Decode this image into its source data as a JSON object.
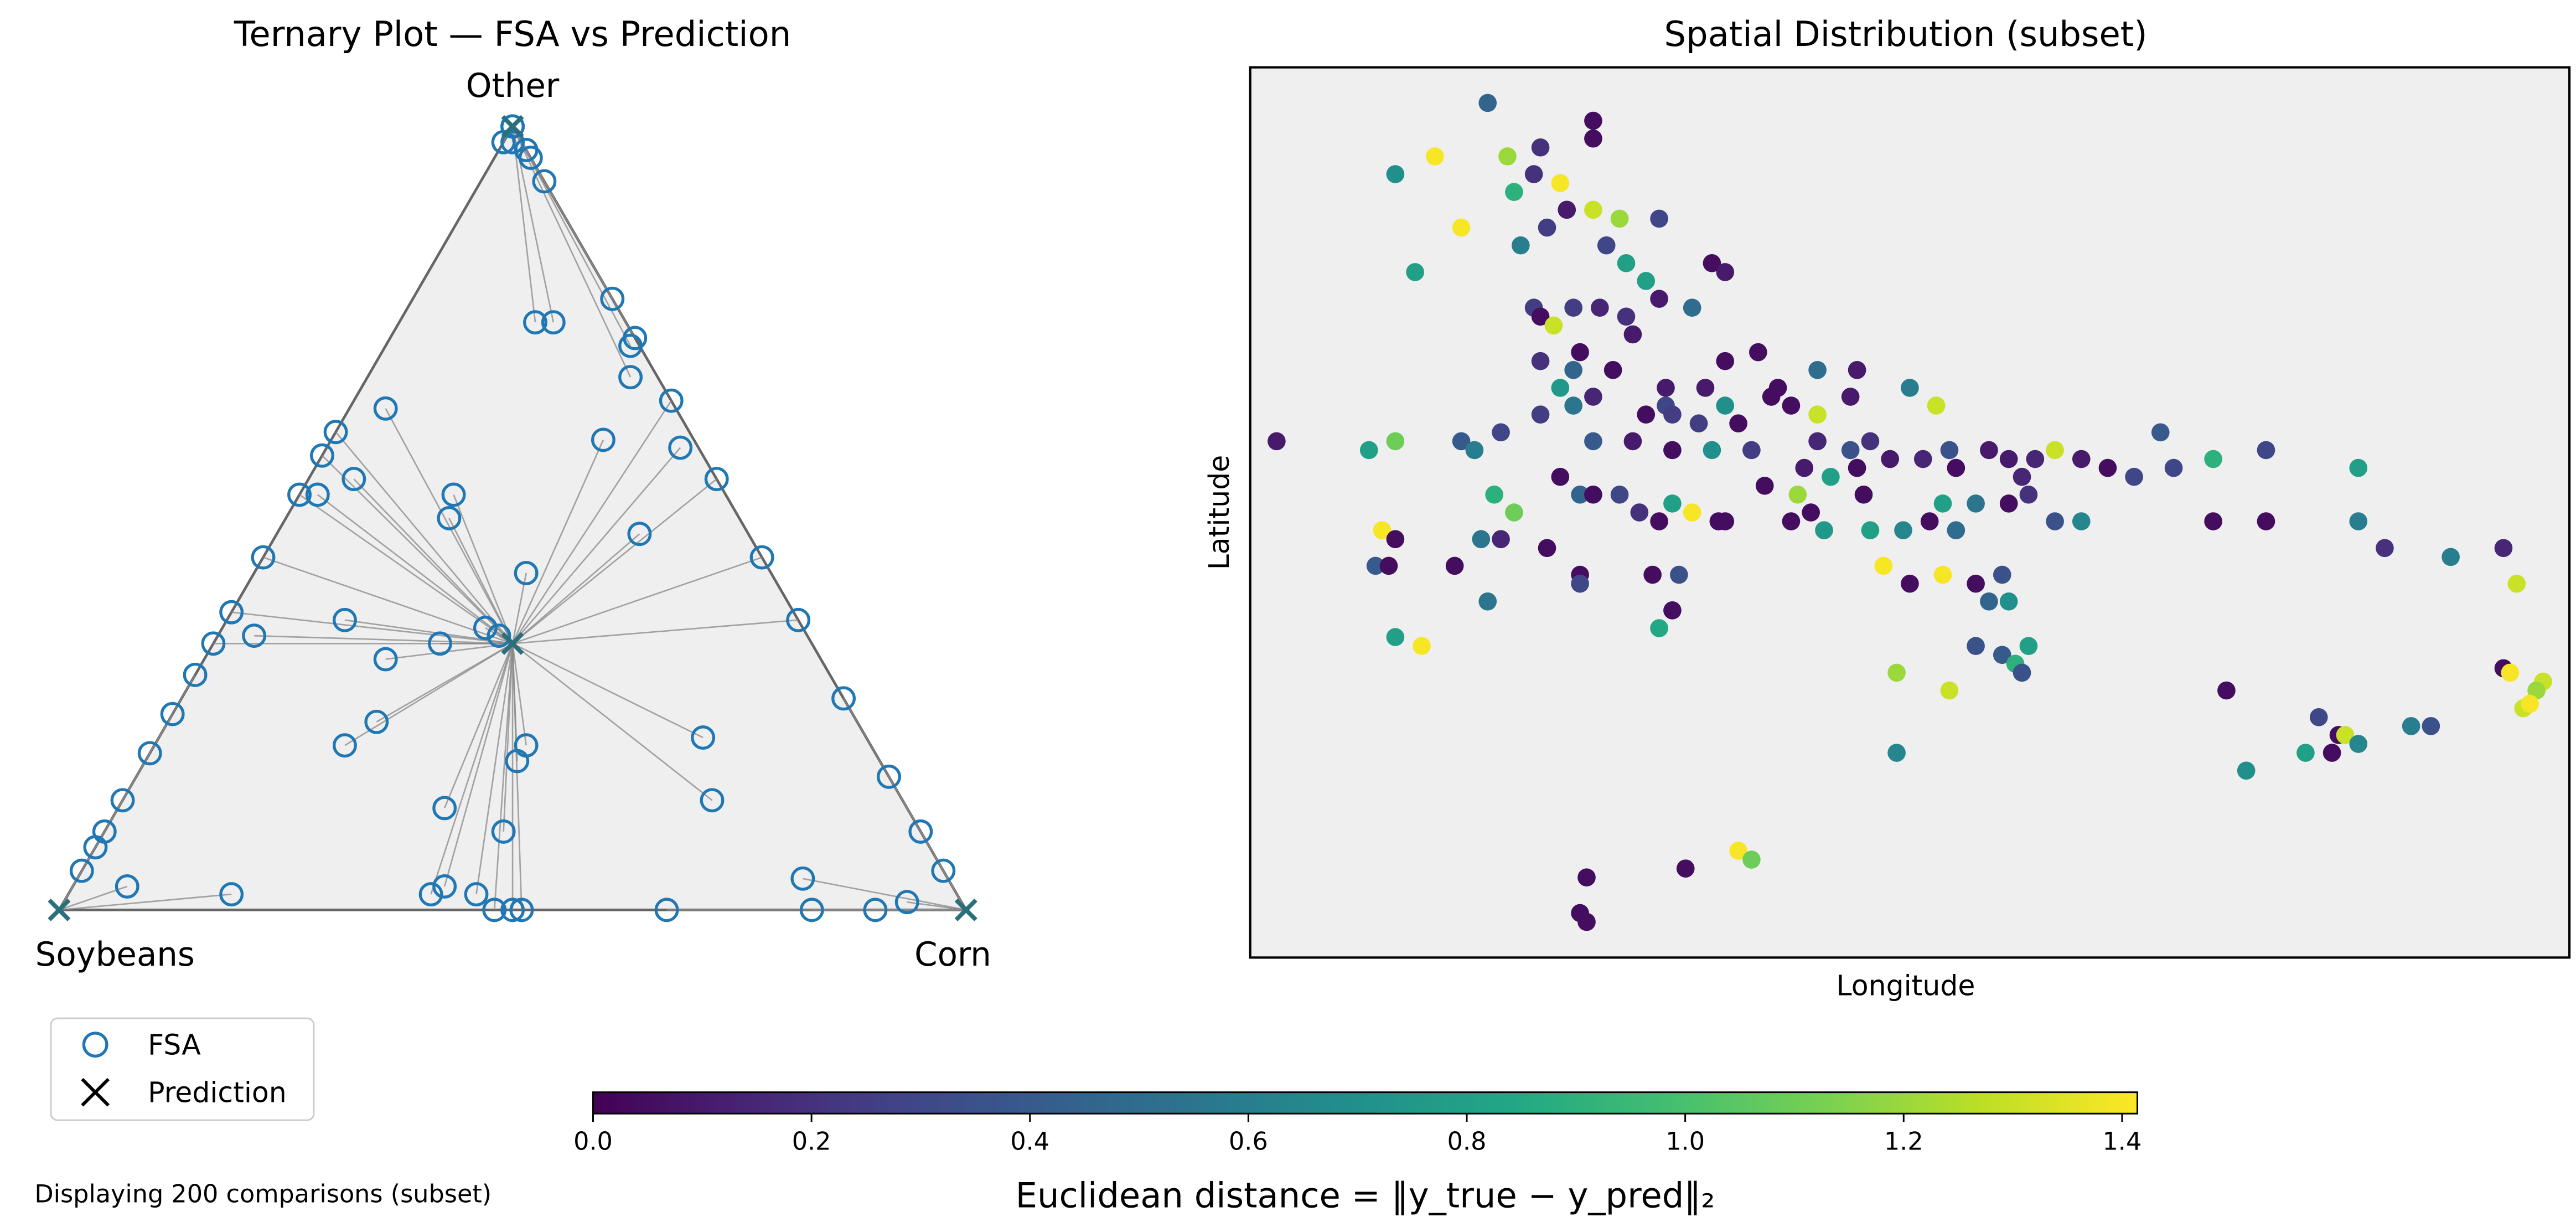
{
  "chart_data": [
    {
      "type": "scatter",
      "subtype": "ternary",
      "title": "Ternary Plot — FSA vs Prediction",
      "vertex_labels": {
        "top": "Other",
        "left": "Soybeans",
        "right": "Corn"
      },
      "legend": {
        "placement": "lower-left, outside plot",
        "entries": [
          {
            "name": "FSA",
            "marker": "open-circle",
            "color": "#1f77b4"
          },
          {
            "name": "Prediction",
            "marker": "x",
            "color": "#000000"
          }
        ]
      },
      "series": [
        {
          "name": "FSA",
          "points_note": "[soybeans, corn, other] fractions",
          "points": [
            [
              0,
              0,
              1
            ],
            [
              0,
              0,
              1
            ],
            [
              0,
              0,
              1
            ],
            [
              0.02,
              0,
              0.98
            ],
            [
              0,
              0.03,
              0.97
            ],
            [
              0.01,
              0.01,
              0.98
            ],
            [
              0.39,
              0,
              0.61
            ],
            [
              0.1,
              0.15,
              0.75
            ],
            [
              0.08,
              0.17,
              0.75
            ],
            [
              0.03,
              0.29,
              0.68
            ],
            [
              0.01,
              0.27,
              0.72
            ],
            [
              0.1,
              0.3,
              0.6
            ],
            [
              0.32,
              0.04,
              0.64
            ],
            [
              0.45,
              0.02,
              0.53
            ],
            [
              0.4,
              0.05,
              0.55
            ],
            [
              0.3,
              0.17,
              0.53
            ],
            [
              0.32,
              0.18,
              0.5
            ],
            [
              0.27,
              0.3,
              0.43
            ],
            [
              0.12,
              0.4,
              0.48
            ],
            [
              0.02,
              0.39,
              0.59
            ],
            [
              0.35,
              0.29,
              0.36
            ],
            [
              0.4,
              0.41,
              0.19
            ],
            [
              0.38,
              0.41,
              0.21
            ],
            [
              0.41,
              0.25,
              0.34
            ],
            [
              0.34,
              0.31,
              0.35
            ],
            [
              0.48,
              0.2,
              0.32
            ],
            [
              0.5,
              0.13,
              0.37
            ],
            [
              0.61,
              0.04,
              0.35
            ],
            [
              0.66,
              0,
              0.34
            ],
            [
              0.53,
              0.23,
              0.24
            ],
            [
              0.58,
              0.21,
              0.21
            ],
            [
              0.51,
              0.36,
              0.13
            ],
            [
              0.46,
              0.44,
              0.1
            ],
            [
              0.18,
              0.6,
              0.22
            ],
            [
              0.21,
              0.65,
              0.14
            ],
            [
              0.16,
              0.8,
              0.04
            ],
            [
              0.06,
              0.93,
              0.01
            ],
            [
              0.95,
              0,
              0.05
            ],
            [
              0.92,
              0,
              0.08
            ],
            [
              0.9,
              0,
              0.1
            ],
            [
              0.86,
              0,
              0.14
            ],
            [
              0.8,
              0,
              0.2
            ],
            [
              0.75,
              0,
              0.25
            ],
            [
              0.7,
              0,
              0.3
            ],
            [
              0.62,
              0,
              0.38
            ],
            [
              0.55,
              0,
              0.45
            ],
            [
              0.47,
              0,
              0.53
            ],
            [
              0.42,
              0,
              0.58
            ],
            [
              0.1,
              0.9,
              0
            ],
            [
              0.17,
              0.83,
              0
            ],
            [
              0.33,
              0.67,
              0
            ],
            [
              0.5,
              0.5,
              0
            ],
            [
              0.49,
              0.51,
              0
            ],
            [
              0.52,
              0.48,
              0
            ],
            [
              0.53,
              0.45,
              0.02
            ],
            [
              0.56,
              0.41,
              0.03
            ],
            [
              0.58,
              0.4,
              0.02
            ],
            [
              0.8,
              0.18,
              0.02
            ],
            [
              0.91,
              0.06,
              0.03
            ],
            [
              0,
              0.95,
              0.05
            ],
            [
              0,
              0.9,
              0.1
            ],
            [
              0,
              0.83,
              0.17
            ],
            [
              0,
              0.73,
              0.27
            ],
            [
              0,
              0.63,
              0.37
            ],
            [
              0,
              0.55,
              0.45
            ],
            [
              0,
              0.45,
              0.55
            ],
            [
              0,
              0.35,
              0.65
            ],
            [
              0,
              0.27,
              0.73
            ],
            [
              0,
              0.22,
              0.78
            ],
            [
              0,
              0.07,
              0.93
            ],
            [
              0,
              0.04,
              0.96
            ]
          ]
        },
        {
          "name": "Prediction",
          "points_note": "[soybeans, corn, other] fractions",
          "points": [
            [
              1,
              0,
              0
            ],
            [
              0,
              1,
              0
            ],
            [
              0,
              0,
              1
            ],
            [
              0.33,
              0.33,
              0.34
            ]
          ]
        }
      ]
    },
    {
      "type": "scatter",
      "title": "Spatial Distribution (subset)",
      "xlabel": "Longitude",
      "ylabel": "Latitude",
      "xticks": "hidden",
      "yticks": "hidden",
      "xlim": [
        0,
        100
      ],
      "ylim": [
        0,
        100
      ],
      "grid": false,
      "color_by": "euclidean_distance",
      "points_note": "[x, y, distance] in relative plot units (axes carry no tick values)",
      "points": [
        [
          18,
          96,
          0.45
        ],
        [
          26,
          94,
          0.05
        ],
        [
          26,
          92,
          0.05
        ],
        [
          22,
          91,
          0.2
        ],
        [
          14,
          90,
          1.4
        ],
        [
          19.5,
          90,
          1.2
        ],
        [
          11,
          88,
          0.7
        ],
        [
          21.5,
          88,
          0.2
        ],
        [
          23.5,
          87,
          1.4
        ],
        [
          20,
          86,
          0.9
        ],
        [
          24,
          84,
          0.1
        ],
        [
          16,
          82,
          1.4
        ],
        [
          26,
          84,
          1.3
        ],
        [
          28,
          83,
          1.2
        ],
        [
          31,
          83,
          0.3
        ],
        [
          22.5,
          82,
          0.25
        ],
        [
          27,
          80,
          0.3
        ],
        [
          20.5,
          80,
          0.6
        ],
        [
          28.5,
          78,
          0.8
        ],
        [
          35,
          78,
          0.05
        ],
        [
          36,
          77,
          0.1
        ],
        [
          12.5,
          77,
          0.8
        ],
        [
          30,
          76,
          0.8
        ],
        [
          31,
          74,
          0.1
        ],
        [
          21.5,
          73,
          0.25
        ],
        [
          22,
          72,
          0.05
        ],
        [
          24.5,
          73,
          0.25
        ],
        [
          26.5,
          73,
          0.15
        ],
        [
          28.5,
          72,
          0.2
        ],
        [
          33.5,
          73,
          0.5
        ],
        [
          23,
          71,
          1.3
        ],
        [
          29,
          70,
          0.1
        ],
        [
          25,
          68,
          0.05
        ],
        [
          36,
          67,
          0.05
        ],
        [
          38.5,
          68,
          0.05
        ],
        [
          22,
          67,
          0.2
        ],
        [
          24.5,
          66,
          0.45
        ],
        [
          27.5,
          66,
          0.05
        ],
        [
          31.5,
          64,
          0.1
        ],
        [
          40,
          64,
          0.05
        ],
        [
          43,
          66,
          0.5
        ],
        [
          46,
          66,
          0.1
        ],
        [
          34.5,
          64,
          0.1
        ],
        [
          23.5,
          64,
          0.75
        ],
        [
          31.5,
          62,
          0.3
        ],
        [
          26,
          63,
          0.15
        ],
        [
          36,
          62,
          0.7
        ],
        [
          39.5,
          63,
          0.05
        ],
        [
          45.5,
          63,
          0.1
        ],
        [
          50,
          64,
          0.6
        ],
        [
          52,
          62,
          1.3
        ],
        [
          22,
          61,
          0.25
        ],
        [
          24.5,
          62,
          0.55
        ],
        [
          30,
          61,
          0.05
        ],
        [
          32,
          61,
          0.25
        ],
        [
          34,
          60,
          0.25
        ],
        [
          37,
          60,
          0.05
        ],
        [
          41,
          62,
          0.05
        ],
        [
          43,
          61,
          1.3
        ],
        [
          19,
          59,
          0.3
        ],
        [
          16,
          58,
          0.4
        ],
        [
          17,
          57,
          0.6
        ],
        [
          26,
          58,
          0.4
        ],
        [
          29,
          58,
          0.1
        ],
        [
          32,
          57,
          0.05
        ],
        [
          35,
          57,
          0.7
        ],
        [
          38,
          57,
          0.25
        ],
        [
          43,
          58,
          0.15
        ],
        [
          45.5,
          57,
          0.35
        ],
        [
          47,
          58,
          0.2
        ],
        [
          51,
          56,
          0.15
        ],
        [
          53,
          57,
          0.35
        ],
        [
          56,
          57,
          0.1
        ],
        [
          57.5,
          56,
          0.1
        ],
        [
          59.5,
          56,
          0.15
        ],
        [
          46,
          55,
          0.05
        ],
        [
          42,
          55,
          0.1
        ],
        [
          44,
          54,
          0.8
        ],
        [
          48.5,
          56,
          0.1
        ],
        [
          53.5,
          55,
          0.05
        ],
        [
          58.5,
          54,
          0.15
        ],
        [
          61,
          57,
          1.3
        ],
        [
          63,
          56,
          0.1
        ],
        [
          65,
          55,
          0.05
        ],
        [
          67,
          54,
          0.3
        ],
        [
          77,
          57,
          0.3
        ],
        [
          2,
          58,
          0.1
        ],
        [
          9,
          57,
          0.8
        ],
        [
          11,
          58,
          1.1
        ],
        [
          73,
          56,
          0.9
        ],
        [
          70,
          55,
          0.3
        ],
        [
          73,
          49,
          0.05
        ],
        [
          77,
          49,
          0.05
        ],
        [
          69,
          59,
          0.4
        ],
        [
          84,
          55,
          0.8
        ],
        [
          84,
          49,
          0.6
        ],
        [
          86,
          46,
          0.2
        ],
        [
          95,
          46,
          0.15
        ],
        [
          91,
          45,
          0.6
        ],
        [
          23.5,
          54,
          0.05
        ],
        [
          25,
          52,
          0.45
        ],
        [
          18.5,
          52,
          0.9
        ],
        [
          20,
          50,
          1.1
        ],
        [
          26,
          52,
          0.05
        ],
        [
          28,
          52,
          0.3
        ],
        [
          29.5,
          50,
          0.2
        ],
        [
          32,
          51,
          0.8
        ],
        [
          33.5,
          50,
          1.4
        ],
        [
          35.5,
          49,
          0.05
        ],
        [
          39,
          53,
          0.05
        ],
        [
          41.5,
          52,
          1.2
        ],
        [
          42.5,
          50,
          0.05
        ],
        [
          46.5,
          52,
          0.05
        ],
        [
          52.5,
          51,
          0.8
        ],
        [
          55,
          51,
          0.55
        ],
        [
          57.5,
          51,
          0.05
        ],
        [
          59,
          52,
          0.2
        ],
        [
          31,
          49,
          0.05
        ],
        [
          10,
          48,
          1.4
        ],
        [
          11,
          47,
          0.05
        ],
        [
          17.5,
          47,
          0.55
        ],
        [
          19,
          47,
          0.15
        ],
        [
          22.5,
          46,
          0.05
        ],
        [
          36,
          49,
          0.05
        ],
        [
          41,
          49,
          0.05
        ],
        [
          43.5,
          48,
          0.75
        ],
        [
          47,
          48,
          0.8
        ],
        [
          49.5,
          48,
          0.65
        ],
        [
          51.5,
          49,
          0.05
        ],
        [
          53.5,
          48,
          0.5
        ],
        [
          61,
          49,
          0.35
        ],
        [
          63,
          49,
          0.65
        ],
        [
          9.5,
          44,
          0.4
        ],
        [
          10.5,
          44,
          0.05
        ],
        [
          15.5,
          44,
          0.05
        ],
        [
          25,
          43,
          0.05
        ],
        [
          30.5,
          43,
          0.05
        ],
        [
          32.5,
          43,
          0.35
        ],
        [
          48,
          44,
          1.4
        ],
        [
          50,
          42,
          0.05
        ],
        [
          52.5,
          43,
          1.4
        ],
        [
          55,
          42,
          0.05
        ],
        [
          57,
          43,
          0.35
        ],
        [
          56,
          40,
          0.45
        ],
        [
          57.5,
          40,
          0.7
        ],
        [
          25,
          42,
          0.3
        ],
        [
          32,
          39,
          0.05
        ],
        [
          18,
          40,
          0.55
        ],
        [
          11,
          36,
          0.8
        ],
        [
          13,
          35,
          1.4
        ],
        [
          31,
          37,
          0.85
        ],
        [
          55,
          35,
          0.35
        ],
        [
          57,
          34,
          0.4
        ],
        [
          59,
          35,
          0.8
        ],
        [
          58,
          33,
          0.9
        ],
        [
          58.5,
          32,
          0.35
        ],
        [
          49,
          32,
          1.2
        ],
        [
          53,
          30,
          1.3
        ],
        [
          74,
          30,
          0.05
        ],
        [
          81,
          27,
          0.3
        ],
        [
          82.5,
          25,
          0.05
        ],
        [
          88,
          26,
          0.6
        ],
        [
          89.5,
          26,
          0.35
        ],
        [
          49,
          23,
          0.65
        ],
        [
          80,
          23,
          0.8
        ],
        [
          82,
          23,
          0.05
        ],
        [
          83,
          25,
          1.3
        ],
        [
          84,
          24,
          0.65
        ],
        [
          75.5,
          21,
          0.7
        ],
        [
          98,
          31,
          1.3
        ],
        [
          97.5,
          30,
          1.2
        ],
        [
          96.5,
          28,
          1.3
        ],
        [
          97,
          28.5,
          1.4
        ],
        [
          95,
          32.5,
          0.05
        ],
        [
          95.5,
          32,
          1.4
        ],
        [
          37,
          12,
          1.4
        ],
        [
          33,
          10,
          0.05
        ],
        [
          38,
          11,
          1.1
        ],
        [
          25.5,
          9,
          0.05
        ],
        [
          25,
          5,
          0.05
        ],
        [
          25.5,
          4,
          0.05
        ],
        [
          96,
          42,
          1.3
        ]
      ],
      "colorbar": {
        "label": "Euclidean distance = ‖y_true − y_pred‖₂",
        "colormap": "viridis",
        "range": [
          0,
          1.414
        ],
        "ticks": [
          "0.0",
          "0.2",
          "0.4",
          "0.6",
          "0.8",
          "1.0",
          "1.2",
          "1.4"
        ],
        "orientation": "horizontal"
      }
    }
  ],
  "footnote": "Displaying 200 comparisons (subset)"
}
